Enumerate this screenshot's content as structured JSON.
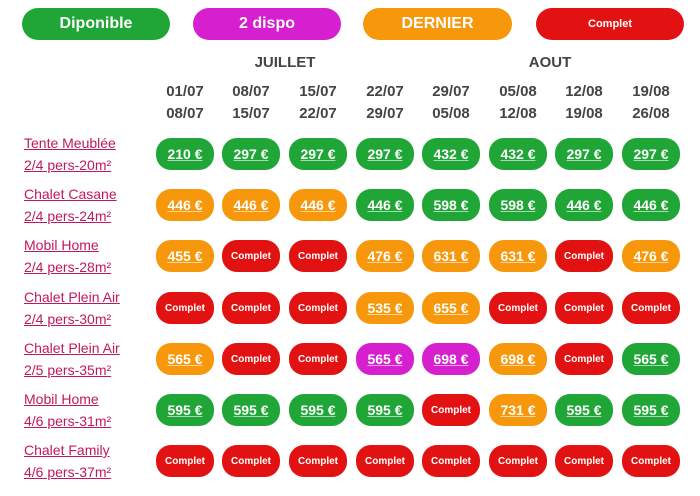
{
  "colors": {
    "dispo": "#1fa637",
    "deux": "#d61fcf",
    "dernier": "#f7980c",
    "complet": "#e31212"
  },
  "legend": [
    {
      "label": "Diponible",
      "status": "dispo"
    },
    {
      "label": "2 dispo",
      "status": "deux"
    },
    {
      "label": "DERNIER",
      "status": "dernier"
    },
    {
      "label": "Complet",
      "status": "complet"
    }
  ],
  "months": {
    "juillet": "JUILLET",
    "aout": "AOUT"
  },
  "weeks": [
    {
      "start": "01/07",
      "end": "08/07"
    },
    {
      "start": "08/07",
      "end": "15/07"
    },
    {
      "start": "15/07",
      "end": "22/07"
    },
    {
      "start": "22/07",
      "end": "29/07"
    },
    {
      "start": "29/07",
      "end": "05/08"
    },
    {
      "start": "05/08",
      "end": "12/08"
    },
    {
      "start": "12/08",
      "end": "19/08"
    },
    {
      "start": "19/08",
      "end": "26/08"
    }
  ],
  "rows": [
    {
      "name": "Tente Meublée",
      "capacity": "2/4 pers-20m²",
      "cells": [
        {
          "t": "210 €",
          "s": "dispo"
        },
        {
          "t": "297 €",
          "s": "dispo"
        },
        {
          "t": "297 €",
          "s": "dispo"
        },
        {
          "t": "297 €",
          "s": "dispo"
        },
        {
          "t": "432 €",
          "s": "dispo"
        },
        {
          "t": "432 €",
          "s": "dispo"
        },
        {
          "t": "297 €",
          "s": "dispo"
        },
        {
          "t": "297 €",
          "s": "dispo"
        }
      ]
    },
    {
      "name": "Chalet Casane",
      "capacity": "2/4 pers-24m²",
      "cells": [
        {
          "t": "446 €",
          "s": "dernier"
        },
        {
          "t": "446 €",
          "s": "dernier"
        },
        {
          "t": "446 €",
          "s": "dernier"
        },
        {
          "t": "446 €",
          "s": "dispo"
        },
        {
          "t": "598 €",
          "s": "dispo"
        },
        {
          "t": "598 €",
          "s": "dispo"
        },
        {
          "t": "446 €",
          "s": "dispo"
        },
        {
          "t": "446 €",
          "s": "dispo"
        }
      ]
    },
    {
      "name": "Mobil Home",
      "capacity": "2/4 pers-28m²",
      "cells": [
        {
          "t": "455 €",
          "s": "dernier"
        },
        {
          "t": "Complet",
          "s": "complet"
        },
        {
          "t": "Complet",
          "s": "complet"
        },
        {
          "t": "476 €",
          "s": "dernier"
        },
        {
          "t": "631 €",
          "s": "dernier"
        },
        {
          "t": "631 €",
          "s": "dernier"
        },
        {
          "t": "Complet",
          "s": "complet"
        },
        {
          "t": "476 €",
          "s": "dernier"
        }
      ]
    },
    {
      "name": "Chalet Plein Air",
      "capacity": "2/4 pers-30m²",
      "cells": [
        {
          "t": "Complet",
          "s": "complet"
        },
        {
          "t": "Complet",
          "s": "complet"
        },
        {
          "t": "Complet",
          "s": "complet"
        },
        {
          "t": "535 €",
          "s": "dernier"
        },
        {
          "t": "655 €",
          "s": "dernier"
        },
        {
          "t": "Complet",
          "s": "complet"
        },
        {
          "t": "Complet",
          "s": "complet"
        },
        {
          "t": "Complet",
          "s": "complet"
        }
      ]
    },
    {
      "name": "Chalet Plein Air",
      "capacity": "2/5 pers-35m²",
      "cells": [
        {
          "t": "565 €",
          "s": "dernier"
        },
        {
          "t": "Complet",
          "s": "complet"
        },
        {
          "t": "Complet",
          "s": "complet"
        },
        {
          "t": "565 €",
          "s": "deux"
        },
        {
          "t": "698 €",
          "s": "deux"
        },
        {
          "t": "698 €",
          "s": "dernier"
        },
        {
          "t": "Complet",
          "s": "complet"
        },
        {
          "t": "565 €",
          "s": "dispo"
        }
      ]
    },
    {
      "name": "Mobil Home",
      "capacity": "4/6 pers-31m²",
      "cells": [
        {
          "t": "595 €",
          "s": "dispo"
        },
        {
          "t": "595 €",
          "s": "dispo"
        },
        {
          "t": "595 €",
          "s": "dispo"
        },
        {
          "t": "595 €",
          "s": "dispo"
        },
        {
          "t": "Complet",
          "s": "complet"
        },
        {
          "t": "731 €",
          "s": "dernier"
        },
        {
          "t": "595 €",
          "s": "dispo"
        },
        {
          "t": "595 €",
          "s": "dispo"
        }
      ]
    },
    {
      "name": "Chalet Family",
      "capacity": "4/6 pers-37m²",
      "cells": [
        {
          "t": "Complet",
          "s": "complet"
        },
        {
          "t": "Complet",
          "s": "complet"
        },
        {
          "t": "Complet",
          "s": "complet"
        },
        {
          "t": "Complet",
          "s": "complet"
        },
        {
          "t": "Complet",
          "s": "complet"
        },
        {
          "t": "Complet",
          "s": "complet"
        },
        {
          "t": "Complet",
          "s": "complet"
        },
        {
          "t": "Complet",
          "s": "complet"
        }
      ]
    }
  ]
}
